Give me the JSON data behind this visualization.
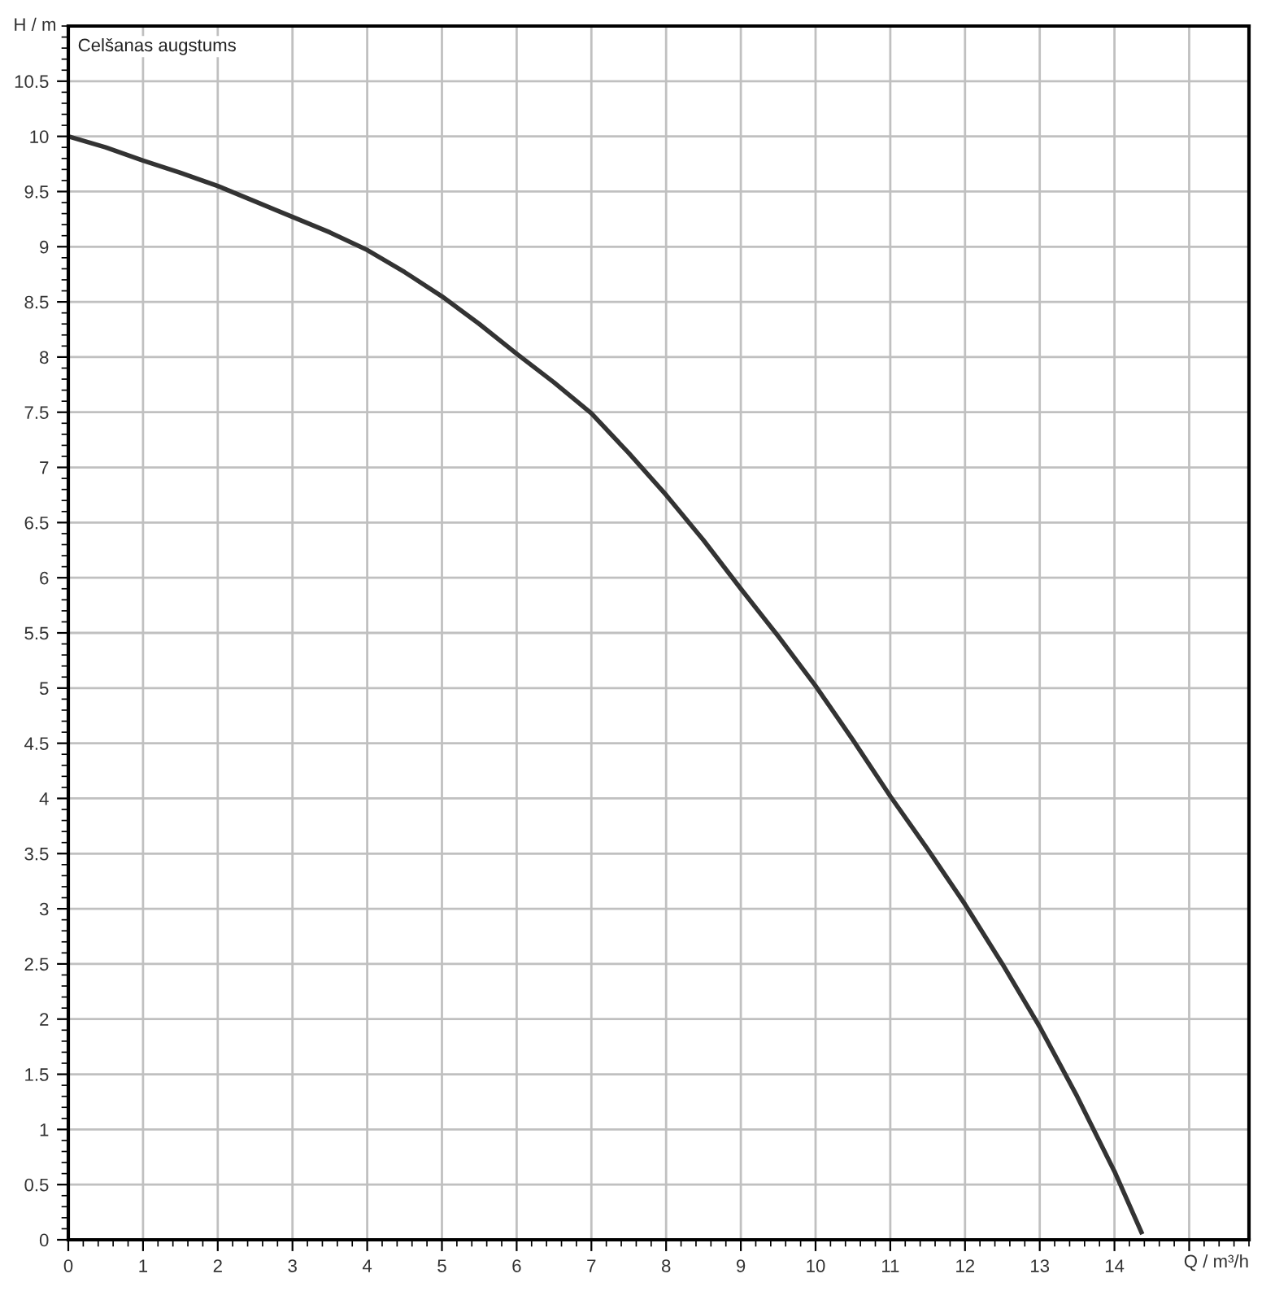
{
  "chart_data": {
    "type": "line",
    "xlabel": "Q / m³/h",
    "ylabel": "H / m",
    "annotations": [
      "Celšanas augstums"
    ],
    "x": [
      0,
      0.5,
      1,
      1.5,
      2,
      2.5,
      3,
      3.5,
      4,
      4.5,
      5,
      5.5,
      6,
      6.5,
      7,
      7.5,
      8,
      8.5,
      9,
      9.5,
      10,
      10.5,
      11,
      11.5,
      12,
      12.5,
      13,
      13.5,
      14,
      14.36
    ],
    "series": [
      {
        "color": "#333333",
        "values": [
          10.0,
          9.9,
          9.78,
          9.67,
          9.55,
          9.41,
          9.27,
          9.13,
          8.97,
          8.77,
          8.55,
          8.3,
          8.03,
          7.77,
          7.49,
          7.13,
          6.75,
          6.34,
          5.9,
          5.47,
          5.02,
          4.53,
          4.02,
          3.54,
          3.04,
          2.5,
          1.93,
          1.3,
          0.62,
          0.07
        ]
      }
    ],
    "xlim": [
      0,
      15.8
    ],
    "ylim": [
      0,
      11
    ],
    "xticks": [
      0,
      1,
      2,
      3,
      4,
      5,
      6,
      7,
      8,
      9,
      10,
      11,
      12,
      13,
      14,
      {
        "value": 15,
        "label": null
      }
    ],
    "yticks": [
      0,
      0.5,
      1,
      1.5,
      2,
      2.5,
      3,
      3.5,
      4,
      4.5,
      5,
      5.5,
      6,
      6.5,
      7,
      7.5,
      8,
      8.5,
      9,
      9.5,
      10,
      10.5
    ],
    "grid": true,
    "legend": false,
    "marker": "none",
    "line_style": "solid"
  }
}
